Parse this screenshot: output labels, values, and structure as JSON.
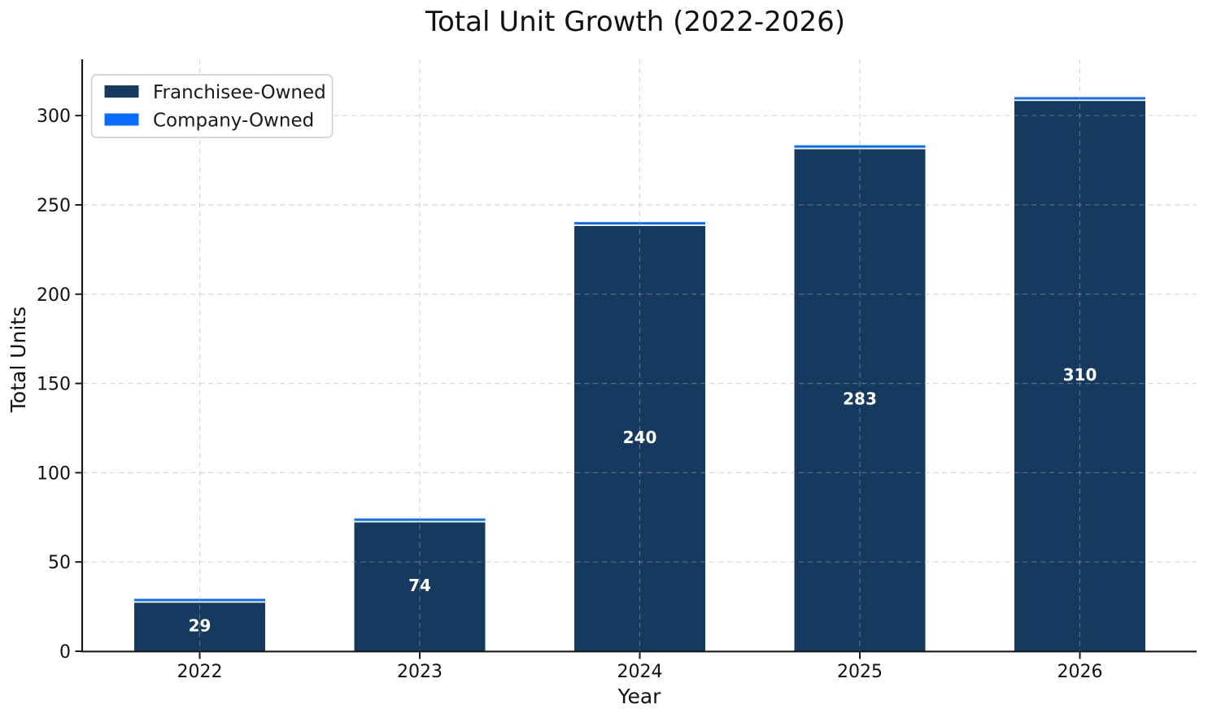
{
  "title": "Total Unit Growth (2022-2026)",
  "chart_data": {
    "type": "bar",
    "stacked": true,
    "title": "Total Unit Growth (2022-2026)",
    "xlabel": "Year",
    "ylabel": "Total Units",
    "categories": [
      "2022",
      "2023",
      "2024",
      "2025",
      "2026"
    ],
    "series": [
      {
        "name": "Franchisee-Owned",
        "color": "#16395F",
        "values": [
          28,
          73,
          239,
          282,
          309
        ]
      },
      {
        "name": "Company-Owned",
        "color": "#0A6BFF",
        "values": [
          1,
          1,
          1,
          1,
          1
        ]
      }
    ],
    "totals": [
      29,
      74,
      240,
      283,
      310
    ],
    "total_label_color": "#ffffff",
    "yticks": [
      0,
      50,
      100,
      150,
      200,
      250,
      300
    ],
    "ylim": [
      0,
      331.5
    ],
    "grid": "dashed",
    "legend_position": "upper-left",
    "axis_color": "#1a1a1a",
    "grid_color": "#aaaaaa"
  }
}
